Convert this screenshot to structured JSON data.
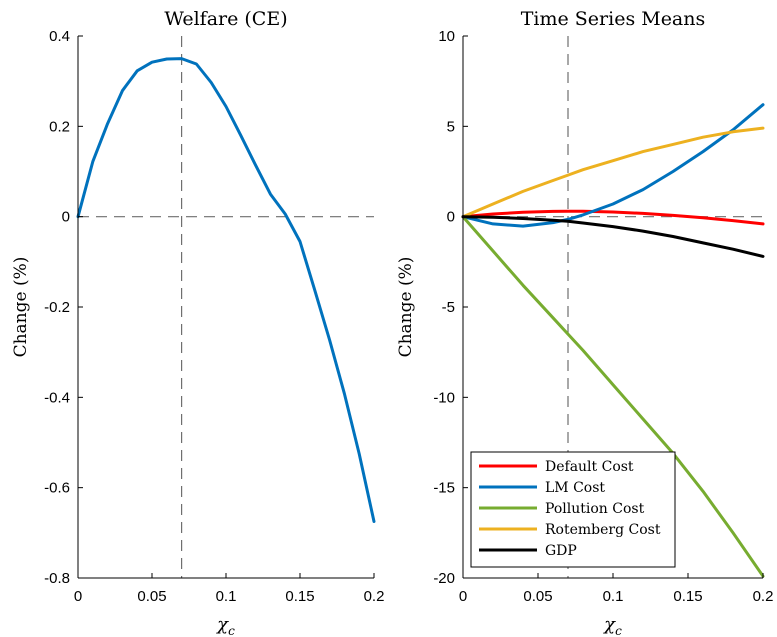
{
  "chart_data": [
    {
      "type": "line",
      "title": "Welfare (CE)",
      "xlabel": "χ",
      "xlabel_sub": "c",
      "ylabel": "Change (%)",
      "xlim": [
        0,
        0.2
      ],
      "ylim": [
        -0.8,
        0.4
      ],
      "xticks": [
        0,
        0.05,
        0.1,
        0.15,
        0.2
      ],
      "xtick_labels": [
        "0",
        "0.05",
        "0.1",
        "0.15",
        "0.2"
      ],
      "yticks": [
        0.4,
        0.2,
        0,
        -0.2,
        -0.4,
        -0.6,
        -0.8
      ],
      "ytick_labels": [
        "0.4",
        "0.2",
        "0",
        "-0.2",
        "-0.4",
        "-0.6",
        "-0.8"
      ],
      "grid": false,
      "reference_lines": {
        "vertical_x": 0.07,
        "horizontal_y": 0
      },
      "x": [
        0,
        0.01,
        0.02,
        0.03,
        0.04,
        0.05,
        0.06,
        0.07,
        0.08,
        0.09,
        0.1,
        0.11,
        0.12,
        0.13,
        0.14,
        0.15,
        0.16,
        0.17,
        0.18,
        0.19,
        0.2
      ],
      "series": [
        {
          "color": "#0072bd",
          "values": [
            0,
            0.122,
            0.206,
            0.279,
            0.323,
            0.342,
            0.349,
            0.35,
            0.338,
            0.297,
            0.244,
            0.18,
            0.114,
            0.05,
            0.006,
            -0.055,
            -0.163,
            -0.273,
            -0.392,
            -0.525,
            -0.675
          ]
        }
      ]
    },
    {
      "type": "line",
      "title": "Time Series Means",
      "xlabel": "χ",
      "xlabel_sub": "c",
      "ylabel": "Change (%)",
      "xlim": [
        0,
        0.2
      ],
      "ylim": [
        -20,
        10
      ],
      "xticks": [
        0,
        0.05,
        0.1,
        0.15,
        0.2
      ],
      "xtick_labels": [
        "0",
        "0.05",
        "0.1",
        "0.15",
        "0.2"
      ],
      "yticks": [
        10,
        5,
        0,
        -5,
        -10,
        -15,
        -20
      ],
      "ytick_labels": [
        "10",
        "5",
        "0",
        "-5",
        "-10",
        "-15",
        "-20"
      ],
      "grid": false,
      "legend": "bottom-left",
      "reference_lines": {
        "vertical_x": 0.07,
        "horizontal_y": 0
      },
      "x": [
        0,
        0.02,
        0.04,
        0.06,
        0.07,
        0.08,
        0.1,
        0.12,
        0.14,
        0.16,
        0.18,
        0.2
      ],
      "series": [
        {
          "name": "Default Cost",
          "color": "#ff0000",
          "values": [
            0,
            0.15,
            0.24,
            0.29,
            0.3,
            0.3,
            0.26,
            0.18,
            0.07,
            -0.06,
            -0.22,
            -0.4
          ]
        },
        {
          "name": "LM Cost",
          "color": "#0072bd",
          "values": [
            0,
            -0.4,
            -0.52,
            -0.33,
            -0.15,
            0.1,
            0.7,
            1.5,
            2.5,
            3.6,
            4.8,
            6.2
          ]
        },
        {
          "name": "Pollution Cost",
          "color": "#77ac30",
          "values": [
            0,
            -1.9,
            -3.8,
            -5.6,
            -6.5,
            -7.4,
            -9.3,
            -11.2,
            -13.1,
            -15.2,
            -17.5,
            -19.9
          ]
        },
        {
          "name": "Rotemberg Cost",
          "color": "#edb120",
          "values": [
            0,
            0.7,
            1.4,
            2.0,
            2.3,
            2.6,
            3.1,
            3.6,
            4.0,
            4.4,
            4.7,
            4.9
          ]
        },
        {
          "name": "GDP",
          "color": "#000000",
          "values": [
            0,
            -0.03,
            -0.1,
            -0.2,
            -0.25,
            -0.35,
            -0.55,
            -0.8,
            -1.1,
            -1.45,
            -1.8,
            -2.2
          ]
        }
      ]
    }
  ]
}
